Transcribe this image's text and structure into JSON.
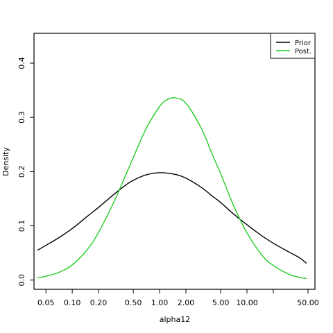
{
  "chart_data": {
    "type": "line",
    "xlabel": "alpha12",
    "ylabel": "Density",
    "x_scale": "log",
    "xlim": [
      0.0365,
      60
    ],
    "ylim": [
      -0.017,
      0.455
    ],
    "x_ticks": [
      {
        "value": 0.05,
        "label": "0.05"
      },
      {
        "value": 0.1,
        "label": "0.10"
      },
      {
        "value": 0.2,
        "label": "0.20"
      },
      {
        "value": 0.5,
        "label": "0.50"
      },
      {
        "value": 1,
        "label": "1.00"
      },
      {
        "value": 2,
        "label": "2.00"
      },
      {
        "value": 5,
        "label": "5.00"
      },
      {
        "value": 10,
        "label": "10.00"
      },
      {
        "value": 20,
        "label": ""
      },
      {
        "value": 50,
        "label": "50.00"
      }
    ],
    "y_ticks": [
      {
        "value": 0.0,
        "label": "0.0"
      },
      {
        "value": 0.1,
        "label": "0.1"
      },
      {
        "value": 0.2,
        "label": "0.2"
      },
      {
        "value": 0.3,
        "label": "0.3"
      },
      {
        "value": 0.4,
        "label": "0.4"
      }
    ],
    "grid": false,
    "legend_position": "top-right",
    "series": [
      {
        "name": "Prior",
        "color": "#000000",
        "x": [
          0.04,
          0.05,
          0.07,
          0.1,
          0.15,
          0.2,
          0.3,
          0.4,
          0.5,
          0.7,
          1,
          1.5,
          2,
          3,
          4,
          5,
          7,
          10,
          15,
          20,
          30,
          40,
          48
        ],
        "y": [
          0.055,
          0.064,
          0.078,
          0.095,
          0.118,
          0.134,
          0.158,
          0.174,
          0.184,
          0.194,
          0.198,
          0.195,
          0.188,
          0.171,
          0.155,
          0.143,
          0.122,
          0.102,
          0.081,
          0.068,
          0.052,
          0.041,
          0.031
        ]
      },
      {
        "name": "Post.",
        "color": "#22cc22",
        "x": [
          0.04,
          0.05,
          0.07,
          0.1,
          0.15,
          0.2,
          0.3,
          0.4,
          0.5,
          0.7,
          1,
          1.2,
          1.5,
          2,
          3,
          4,
          5,
          7,
          10,
          15,
          20,
          30,
          40,
          48
        ],
        "y": [
          0.004,
          0.007,
          0.014,
          0.028,
          0.057,
          0.088,
          0.144,
          0.19,
          0.226,
          0.279,
          0.32,
          0.332,
          0.336,
          0.326,
          0.28,
          0.232,
          0.196,
          0.138,
          0.087,
          0.045,
          0.027,
          0.011,
          0.005,
          0.003
        ]
      }
    ]
  }
}
